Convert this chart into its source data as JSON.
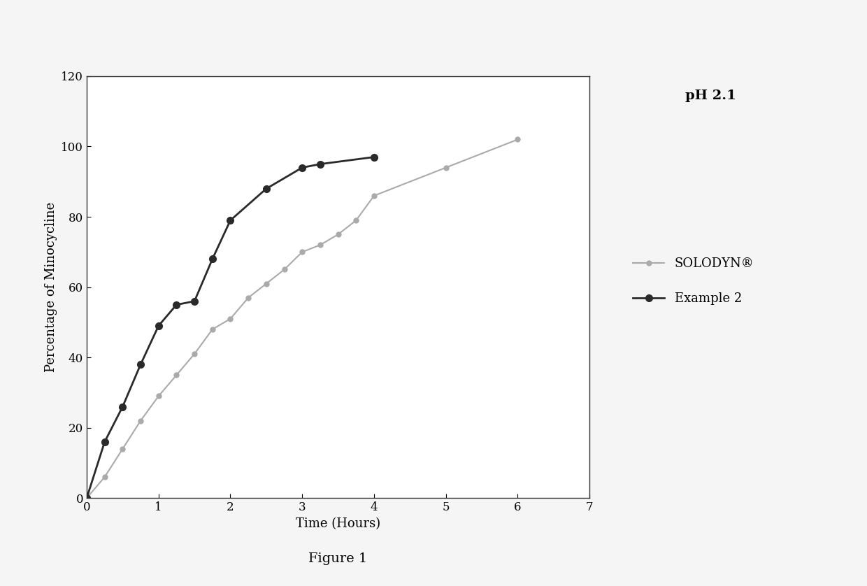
{
  "title_annotation": "pH 2.1",
  "xlabel": "Time (Hours)",
  "ylabel": "Percentage of Minocycline",
  "figure_caption": "Figure 1",
  "xlim": [
    0,
    7
  ],
  "ylim": [
    0,
    120
  ],
  "xticks": [
    0,
    1,
    2,
    3,
    4,
    5,
    6,
    7
  ],
  "yticks": [
    0,
    20,
    40,
    60,
    80,
    100,
    120
  ],
  "solodyn_x": [
    0,
    0.25,
    0.5,
    0.75,
    1.0,
    1.25,
    1.5,
    1.75,
    2.0,
    2.25,
    2.5,
    2.75,
    3.0,
    3.25,
    3.5,
    3.75,
    4.0,
    5.0,
    6.0
  ],
  "solodyn_y": [
    0,
    6,
    14,
    22,
    29,
    35,
    41,
    48,
    51,
    57,
    61,
    65,
    70,
    72,
    75,
    79,
    86,
    94,
    102
  ],
  "example2_x": [
    0,
    0.25,
    0.5,
    0.75,
    1.0,
    1.25,
    1.5,
    1.75,
    2.0,
    2.5,
    3.0,
    3.25,
    4.0
  ],
  "example2_y": [
    0,
    16,
    26,
    38,
    49,
    55,
    56,
    68,
    79,
    88,
    94,
    95,
    97
  ],
  "solodyn_color": "#aaaaaa",
  "example2_color": "#2a2a2a",
  "solodyn_label": "SOLODYN®",
  "example2_label": "Example 2",
  "background_color": "#f5f5f5",
  "chart_bg": "#ffffff",
  "font_size_axis_label": 13,
  "font_size_ticks": 12,
  "font_size_legend": 13,
  "font_size_annotation": 14,
  "font_size_caption": 14
}
